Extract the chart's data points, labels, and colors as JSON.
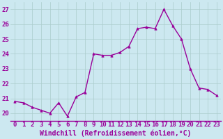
{
  "x": [
    0,
    1,
    2,
    3,
    4,
    5,
    6,
    7,
    8,
    9,
    10,
    11,
    12,
    13,
    14,
    15,
    16,
    17,
    18,
    19,
    20,
    21,
    22,
    23
  ],
  "y": [
    20.8,
    20.7,
    20.4,
    20.2,
    20.0,
    20.7,
    19.8,
    21.1,
    21.4,
    24.0,
    23.9,
    23.9,
    24.1,
    24.5,
    25.7,
    25.8,
    25.7,
    27.0,
    25.9,
    25.0,
    23.0,
    21.7,
    21.6,
    21.2
  ],
  "line_color": "#990099",
  "marker": "^",
  "marker_size": 2.5,
  "line_width": 1.0,
  "bg_color": "#cce8f0",
  "grid_color": "#aacccc",
  "xlabel": "Windchill (Refroidissement éolien,°C)",
  "xlabel_color": "#990099",
  "tick_color": "#990099",
  "ylim": [
    19.5,
    27.5
  ],
  "yticks": [
    20,
    21,
    22,
    23,
    24,
    25,
    26,
    27
  ],
  "xticks": [
    0,
    1,
    2,
    3,
    4,
    5,
    6,
    7,
    8,
    9,
    10,
    11,
    12,
    13,
    14,
    15,
    16,
    17,
    18,
    19,
    20,
    21,
    22,
    23
  ],
  "xtick_labels": [
    "0",
    "1",
    "2",
    "3",
    "4",
    "5",
    "6",
    "7",
    "8",
    "9",
    "10",
    "11",
    "12",
    "13",
    "14",
    "15",
    "16",
    "17",
    "18",
    "19",
    "20",
    "21",
    "22",
    "23"
  ],
  "font_size_xlabel": 7,
  "font_size_ticks": 6.5
}
